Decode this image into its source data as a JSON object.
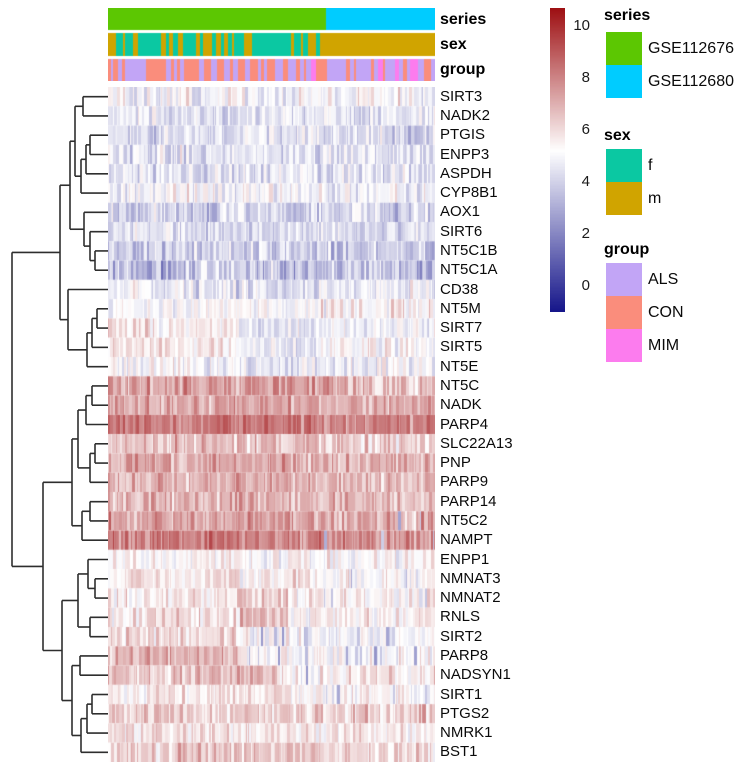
{
  "colors": {
    "series": {
      "GSE112676": "#5cc702",
      "GSE112680": "#00ccff"
    },
    "sex": {
      "f": "#0bc8a2",
      "m": "#d0a400"
    },
    "group": {
      "ALS": "#c2a5f6",
      "CON": "#fa8d7c",
      "MIM": "#fc7cee"
    },
    "heat_low": "#16168a",
    "heat_mid": "#ffffff",
    "heat_high": "#9e1013",
    "dendrogram_line": "#2e2e2e",
    "label_text": "#0a0a0a"
  },
  "annotation_labels": [
    "series",
    "sex",
    "group"
  ],
  "legend": {
    "series": {
      "title": "series",
      "items": [
        {
          "label": "GSE112676",
          "color": "#5cc702"
        },
        {
          "label": "GSE112680",
          "color": "#00ccff"
        }
      ]
    },
    "sex": {
      "title": "sex",
      "items": [
        {
          "label": "f",
          "color": "#0bc8a2"
        },
        {
          "label": "m",
          "color": "#d0a400"
        }
      ]
    },
    "group": {
      "title": "group",
      "items": [
        {
          "label": "ALS",
          "color": "#c2a5f6"
        },
        {
          "label": "CON",
          "color": "#fa8d7c"
        },
        {
          "label": "MIM",
          "color": "#fc7cee"
        }
      ]
    }
  },
  "chart_data": {
    "type": "heatmap",
    "title": "",
    "legend_position": "right",
    "row_dendrogram": true,
    "colorbar_ticks": [
      10,
      8,
      6,
      4,
      2,
      0
    ],
    "value_scale": {
      "min": -1.0,
      "white": 5.2,
      "max": 10.7
    },
    "columns": {
      "approx_count": 300,
      "series_boundary_frac": 0.66,
      "series_left": "GSE112676",
      "series_right": "GSE112680"
    },
    "row_names": [
      "SIRT3",
      "NADK2",
      "PTGIS",
      "ENPP3",
      "ASPDH",
      "CYP8B1",
      "AOX1",
      "SIRT6",
      "NT5C1B",
      "NT5C1A",
      "CD38",
      "NT5M",
      "SIRT7",
      "SIRT5",
      "NT5E",
      "NT5C",
      "NADK",
      "PARP4",
      "SLC22A13",
      "PNP",
      "PARP9",
      "PARP14",
      "NT5C2",
      "NAMPT",
      "ENPP1",
      "NMNAT3",
      "NMNAT2",
      "RNLS",
      "SIRT2",
      "PARP8",
      "NADSYN1",
      "SIRT1",
      "PTGS2",
      "NMRK1",
      "BST1"
    ],
    "rows": [
      {
        "name": "SIRT3",
        "sd": 0.6,
        "segments": [
          [
            0,
            1,
            4.95,
            0.04,
            6.3
          ]
        ]
      },
      {
        "name": "NADK2",
        "sd": 0.6,
        "segments": [
          [
            0,
            1,
            4.45
          ]
        ]
      },
      {
        "name": "PTGIS",
        "sd": 0.65,
        "segments": [
          [
            0,
            1,
            4.3
          ]
        ]
      },
      {
        "name": "ENPP3",
        "sd": 0.6,
        "segments": [
          [
            0,
            1,
            4.45
          ]
        ]
      },
      {
        "name": "ASPDH",
        "sd": 0.6,
        "segments": [
          [
            0,
            1,
            4.5
          ]
        ]
      },
      {
        "name": "CYP8B1",
        "sd": 0.6,
        "segments": [
          [
            0,
            1,
            4.85,
            0.03,
            6.1
          ]
        ]
      },
      {
        "name": "AOX1",
        "sd": 0.7,
        "segments": [
          [
            0,
            1,
            4.05
          ]
        ]
      },
      {
        "name": "SIRT6",
        "sd": 0.6,
        "segments": [
          [
            0,
            1,
            4.35
          ]
        ]
      },
      {
        "name": "NT5C1B",
        "sd": 0.7,
        "segments": [
          [
            0,
            1,
            3.95
          ]
        ]
      },
      {
        "name": "NT5C1A",
        "sd": 0.75,
        "segments": [
          [
            0,
            1,
            3.75,
            0.05,
            2.0
          ]
        ]
      },
      {
        "name": "CD38",
        "sd": 0.7,
        "segments": [
          [
            0,
            0.35,
            4.85
          ],
          [
            0.35,
            0.7,
            4.4
          ],
          [
            0.7,
            1,
            4.6
          ]
        ]
      },
      {
        "name": "NT5M",
        "sd": 0.5,
        "segments": [
          [
            0,
            1,
            5.15,
            0.06,
            6.6
          ]
        ]
      },
      {
        "name": "SIRT7",
        "sd": 0.55,
        "segments": [
          [
            0,
            0.4,
            5.75
          ],
          [
            0.4,
            0.68,
            4.55
          ],
          [
            0.68,
            1,
            4.9
          ]
        ]
      },
      {
        "name": "SIRT5",
        "sd": 0.6,
        "segments": [
          [
            0,
            0.4,
            5.7
          ],
          [
            0.4,
            0.68,
            4.75
          ],
          [
            0.68,
            1,
            5.3
          ]
        ]
      },
      {
        "name": "NT5E",
        "sd": 0.6,
        "segments": [
          [
            0,
            0.4,
            5.1
          ],
          [
            0.4,
            0.68,
            4.6
          ],
          [
            0.68,
            1,
            4.9
          ]
        ]
      },
      {
        "name": "NT5C",
        "sd": 0.7,
        "segments": [
          [
            0,
            0.66,
            7.4
          ],
          [
            0.66,
            1,
            6.9
          ]
        ]
      },
      {
        "name": "NADK",
        "sd": 0.6,
        "segments": [
          [
            0,
            0.66,
            7.2
          ],
          [
            0.66,
            1,
            7.0
          ]
        ]
      },
      {
        "name": "PARP4",
        "sd": 0.55,
        "segments": [
          [
            0,
            0.66,
            8.3
          ],
          [
            0.66,
            1,
            7.9
          ]
        ]
      },
      {
        "name": "SLC22A13",
        "sd": 0.7,
        "segments": [
          [
            0,
            0.66,
            6.6
          ],
          [
            0.66,
            1,
            6.3
          ]
        ]
      },
      {
        "name": "PNP",
        "sd": 0.6,
        "segments": [
          [
            0,
            0.66,
            7.2
          ],
          [
            0.66,
            1,
            6.9
          ]
        ]
      },
      {
        "name": "PARP9",
        "sd": 0.6,
        "segments": [
          [
            0,
            0.66,
            7.0
          ],
          [
            0.66,
            1,
            6.8
          ]
        ]
      },
      {
        "name": "PARP14",
        "sd": 0.6,
        "segments": [
          [
            0,
            0.66,
            6.9
          ],
          [
            0.66,
            1,
            6.7
          ]
        ]
      },
      {
        "name": "NT5C2",
        "sd": 0.65,
        "segments": [
          [
            0,
            0.66,
            7.4
          ],
          [
            0.66,
            1,
            7.0,
            0.04,
            3.5
          ]
        ]
      },
      {
        "name": "NAMPT",
        "sd": 0.6,
        "segments": [
          [
            0,
            0.66,
            8.1
          ],
          [
            0.66,
            1,
            7.7,
            0.04,
            3.5
          ]
        ]
      },
      {
        "name": "ENPP1",
        "sd": 0.5,
        "segments": [
          [
            0,
            1,
            5.35
          ]
        ]
      },
      {
        "name": "NMNAT3",
        "sd": 0.55,
        "segments": [
          [
            0,
            0.66,
            5.7
          ],
          [
            0.66,
            1,
            5.4,
            0.06,
            3.8
          ]
        ]
      },
      {
        "name": "NMNAT2",
        "sd": 0.6,
        "segments": [
          [
            0,
            0.4,
            5.7
          ],
          [
            0.4,
            0.55,
            6.2
          ],
          [
            0.55,
            1,
            5.4,
            0.06,
            3.8
          ]
        ]
      },
      {
        "name": "RNLS",
        "sd": 0.6,
        "segments": [
          [
            0,
            0.4,
            5.9
          ],
          [
            0.4,
            0.55,
            6.7
          ],
          [
            0.55,
            1,
            5.6
          ]
        ]
      },
      {
        "name": "SIRT2",
        "sd": 0.6,
        "segments": [
          [
            0,
            0.4,
            6.1
          ],
          [
            0.4,
            1,
            5.0,
            0.07,
            3.2
          ]
        ]
      },
      {
        "name": "PARP8",
        "sd": 0.6,
        "segments": [
          [
            0,
            0.4,
            7.0
          ],
          [
            0.4,
            1,
            5.15,
            0.08,
            3.0
          ]
        ]
      },
      {
        "name": "NADSYN1",
        "sd": 0.6,
        "segments": [
          [
            0,
            0.52,
            6.6
          ],
          [
            0.52,
            1,
            5.7,
            0.05,
            3.6
          ]
        ]
      },
      {
        "name": "SIRT1",
        "sd": 0.55,
        "segments": [
          [
            0,
            0.55,
            5.7
          ],
          [
            0.55,
            1,
            5.35,
            0.05,
            3.8
          ]
        ]
      },
      {
        "name": "PTGS2",
        "sd": 0.65,
        "segments": [
          [
            0,
            1,
            6.25
          ]
        ]
      },
      {
        "name": "NMRK1",
        "sd": 0.6,
        "segments": [
          [
            0,
            0.66,
            5.8
          ],
          [
            0.66,
            1,
            5.6
          ]
        ]
      },
      {
        "name": "BST1",
        "sd": 0.6,
        "segments": [
          [
            0,
            0.66,
            6.4
          ],
          [
            0.66,
            1,
            6.1,
            0.04,
            4.0
          ]
        ]
      }
    ],
    "annotation_tracks": [
      {
        "name": "series",
        "segments": [
          [
            0,
            0.66,
            {
              "GSE112676": 1
            }
          ],
          [
            0.66,
            1,
            {
              "GSE112680": 1
            }
          ]
        ]
      },
      {
        "name": "sex",
        "segments": [
          [
            0,
            0.012,
            {
              "m": 1
            }
          ],
          [
            0.012,
            0.648,
            {
              "f": 0.62,
              "m": 0.38
            }
          ],
          [
            0.648,
            1,
            {
              "m": 1
            }
          ]
        ]
      },
      {
        "name": "group",
        "segments": [
          [
            0,
            0.615,
            {
              "CON": 0.54,
              "ALS": 0.46
            }
          ],
          [
            0.615,
            0.664,
            {
              "MIM": 0.55,
              "CON": 0.25,
              "ALS": 0.2
            }
          ],
          [
            0.664,
            1,
            {
              "ALS": 0.42,
              "CON": 0.33,
              "MIM": 0.25
            }
          ]
        ]
      }
    ],
    "dendrogram_tree": [
      12,
      [
        60,
        [
          70,
          [
            75,
            [
              83,
              0,
              1
            ],
            [
              81,
              [
                86,
                [
                  90,
                  2,
                  3
                ],
                4
              ],
              5
            ]
          ],
          [
            84,
            6,
            [
              90,
              7,
              [
                95,
                8,
                9
              ]
            ]
          ]
        ],
        [
          68,
          10,
          [
            87,
            [
              92,
              [
                97,
                11,
                12
              ],
              13
            ],
            14
          ]
        ]
      ],
      [
        43,
        [
          72,
          [
            78,
            [
              86,
              [
                92,
                15,
                16
              ],
              17
            ],
            [
              90,
              [
                95,
                18,
                19
              ],
              20
            ]
          ],
          [
            82,
            [
              90,
              21,
              22
            ],
            23
          ]
        ],
        [
          62,
          [
            78,
            [
              88,
              24,
              [
                95,
                25,
                26
              ]
            ],
            [
              90,
              27,
              28
            ]
          ],
          [
            72,
            [
              80,
              29,
              30
            ],
            [
              81,
              [
                87,
                [
                  92,
                  31,
                  32
                ],
                33
              ],
              34
            ]
          ]
        ]
      ]
    ]
  }
}
